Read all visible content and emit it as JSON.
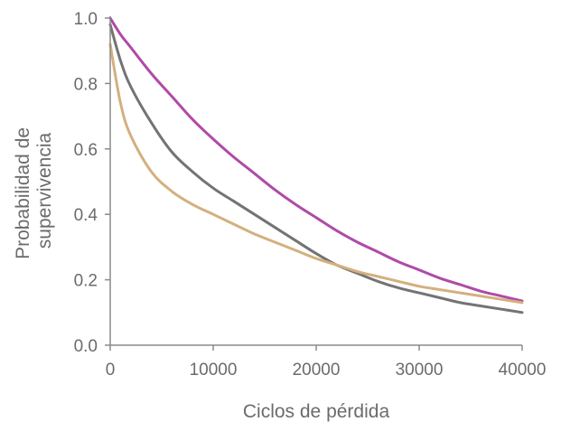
{
  "chart_data": {
    "type": "line",
    "title": "",
    "xlabel": "Ciclos de pérdida",
    "ylabel": [
      "Probabilidad de",
      "supervivencia"
    ],
    "xlim": [
      0,
      40000
    ],
    "ylim": [
      0,
      1.0
    ],
    "xticks": [
      0,
      10000,
      20000,
      30000,
      40000
    ],
    "xtick_labels": [
      "0",
      "10000",
      "20000",
      "30000",
      "40000"
    ],
    "yticks": [
      0,
      0.2,
      0.4,
      0.6,
      0.8,
      1.0
    ],
    "ytick_labels": [
      "0.0",
      "0.2",
      "0.4",
      "0.6",
      "0.8",
      "1.0"
    ],
    "grid": false,
    "legend": "none",
    "series": [
      {
        "color": "#b04aa8",
        "points": [
          [
            0,
            1.0
          ],
          [
            1000,
            0.95
          ],
          [
            2000,
            0.91
          ],
          [
            4000,
            0.83
          ],
          [
            6000,
            0.76
          ],
          [
            8000,
            0.69
          ],
          [
            10000,
            0.63
          ],
          [
            12000,
            0.575
          ],
          [
            14000,
            0.525
          ],
          [
            16000,
            0.475
          ],
          [
            18000,
            0.43
          ],
          [
            20000,
            0.39
          ],
          [
            22000,
            0.35
          ],
          [
            24000,
            0.315
          ],
          [
            26000,
            0.285
          ],
          [
            28000,
            0.255
          ],
          [
            30000,
            0.23
          ],
          [
            32000,
            0.205
          ],
          [
            34000,
            0.185
          ],
          [
            36000,
            0.165
          ],
          [
            38000,
            0.15
          ],
          [
            40000,
            0.135
          ]
        ]
      },
      {
        "color": "#737373",
        "points": [
          [
            0,
            0.98
          ],
          [
            1000,
            0.87
          ],
          [
            2000,
            0.79
          ],
          [
            4000,
            0.68
          ],
          [
            6000,
            0.59
          ],
          [
            8000,
            0.53
          ],
          [
            10000,
            0.48
          ],
          [
            12000,
            0.44
          ],
          [
            14000,
            0.4
          ],
          [
            16000,
            0.36
          ],
          [
            18000,
            0.32
          ],
          [
            20000,
            0.28
          ],
          [
            22000,
            0.245
          ],
          [
            24000,
            0.22
          ],
          [
            26000,
            0.195
          ],
          [
            28000,
            0.175
          ],
          [
            30000,
            0.16
          ],
          [
            32000,
            0.145
          ],
          [
            34000,
            0.13
          ],
          [
            36000,
            0.12
          ],
          [
            38000,
            0.11
          ],
          [
            40000,
            0.1
          ]
        ]
      },
      {
        "color": "#d4b07e",
        "points": [
          [
            0,
            0.92
          ],
          [
            1000,
            0.74
          ],
          [
            2000,
            0.64
          ],
          [
            4000,
            0.53
          ],
          [
            6000,
            0.47
          ],
          [
            8000,
            0.43
          ],
          [
            10000,
            0.4
          ],
          [
            12000,
            0.37
          ],
          [
            14000,
            0.34
          ],
          [
            16000,
            0.315
          ],
          [
            18000,
            0.29
          ],
          [
            20000,
            0.265
          ],
          [
            22000,
            0.245
          ],
          [
            24000,
            0.225
          ],
          [
            26000,
            0.21
          ],
          [
            28000,
            0.195
          ],
          [
            30000,
            0.18
          ],
          [
            32000,
            0.17
          ],
          [
            34000,
            0.16
          ],
          [
            36000,
            0.15
          ],
          [
            38000,
            0.14
          ],
          [
            40000,
            0.13
          ]
        ]
      }
    ]
  }
}
